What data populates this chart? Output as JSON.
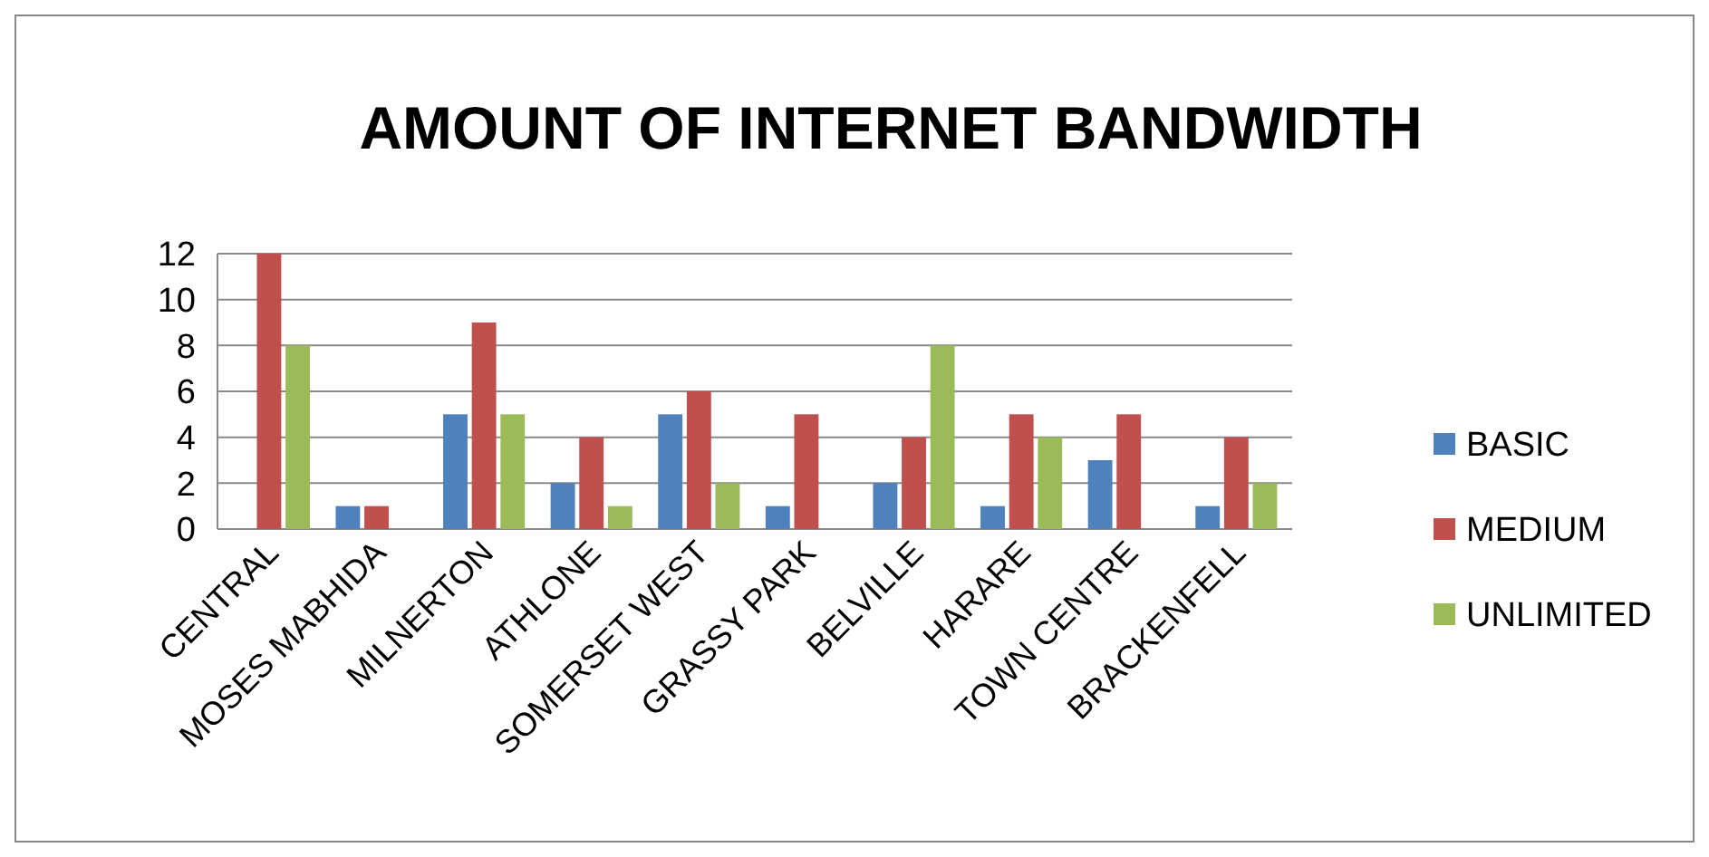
{
  "chart_data": {
    "type": "bar",
    "title": "AMOUNT OF INTERNET BANDWIDTH",
    "categories": [
      "CENTRAL",
      "MOSES MABHIDA",
      "MILNERTON",
      "ATHLONE",
      "SOMERSET WEST",
      "GRASSY PARK",
      "BELVILLE",
      "HARARE",
      "TOWN CENTRE",
      "BRACKENFELL"
    ],
    "series": [
      {
        "name": "BASIC",
        "color": "#4f81bd",
        "values": [
          0,
          1,
          5,
          2,
          5,
          1,
          2,
          1,
          3,
          1
        ]
      },
      {
        "name": "MEDIUM",
        "color": "#c0504d",
        "values": [
          12,
          1,
          9,
          4,
          6,
          5,
          4,
          5,
          5,
          4
        ]
      },
      {
        "name": "UNLIMITED",
        "color": "#9bbb59",
        "values": [
          8,
          0,
          5,
          1,
          2,
          0,
          8,
          4,
          0,
          2
        ]
      }
    ],
    "ylim": [
      0,
      12
    ],
    "yticks": [
      0,
      2,
      4,
      6,
      8,
      10,
      12
    ],
    "grid": "y",
    "legend": "right"
  }
}
